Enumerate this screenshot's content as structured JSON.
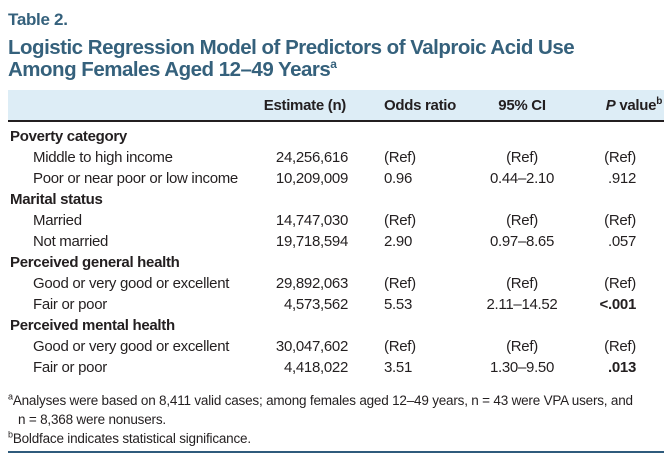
{
  "colors": {
    "title": "#35617c",
    "header_bg": "#ddedf6",
    "rule_dark": "#231f20",
    "rule_bottom": "#2f5b7c"
  },
  "header": {
    "table_label": "Table 2.",
    "title_line1": "Logistic Regression Model of Predictors of Valproic Acid Use",
    "title_line2": "Among Females Aged 12–49 Years",
    "title_sup": "a"
  },
  "table": {
    "col_headers": {
      "estimate": "Estimate (n)",
      "odds_ratio": "Odds ratio",
      "ci": "95% CI",
      "p_italic": "P",
      "p_rest": " value",
      "p_sup": "b"
    },
    "rows": [
      {
        "type": "category",
        "label": "Poverty category"
      },
      {
        "type": "data",
        "label": "Middle to high income",
        "estimate": "24,256,616",
        "odds": "(Ref)",
        "ci": "(Ref)",
        "p": "(Ref)",
        "p_bold": false
      },
      {
        "type": "data",
        "label": "Poor or near poor or low income",
        "estimate": "10,209,009",
        "odds": "0.96",
        "ci": "0.44–2.10",
        "p": ".912",
        "p_bold": false
      },
      {
        "type": "category",
        "label": "Marital status"
      },
      {
        "type": "data",
        "label": "Married",
        "estimate": "14,747,030",
        "odds": "(Ref)",
        "ci": "(Ref)",
        "p": "(Ref)",
        "p_bold": false
      },
      {
        "type": "data",
        "label": "Not married",
        "estimate": "19,718,594",
        "odds": "2.90",
        "ci": "0.97–8.65",
        "p": ".057",
        "p_bold": false
      },
      {
        "type": "category",
        "label": "Perceived general health"
      },
      {
        "type": "data",
        "label": "Good or very good or excellent",
        "estimate": "29,892,063",
        "odds": "(Ref)",
        "ci": "(Ref)",
        "p": "(Ref)",
        "p_bold": false
      },
      {
        "type": "data",
        "label": "Fair or poor",
        "estimate": "4,573,562",
        "odds": "5.53",
        "ci": "2.11–14.52",
        "p": "<.001",
        "p_bold": true
      },
      {
        "type": "category",
        "label": "Perceived mental health"
      },
      {
        "type": "data",
        "label": "Good or very good or excellent",
        "estimate": "30,047,602",
        "odds": "(Ref)",
        "ci": "(Ref)",
        "p": "(Ref)",
        "p_bold": false
      },
      {
        "type": "data",
        "label": "Fair or poor",
        "estimate": "4,418,022",
        "odds": "3.51",
        "ci": "1.30–9.50",
        "p": ".013",
        "p_bold": true
      }
    ]
  },
  "footnotes": {
    "a_sup": "a",
    "a_line1": "Analyses were based on 8,411 valid cases; among females aged 12–49 years, n = 43 were VPA users, and",
    "a_line2": "n = 8,368 were nonusers.",
    "b_sup": "b",
    "b_text": "Boldface indicates statistical significance."
  }
}
